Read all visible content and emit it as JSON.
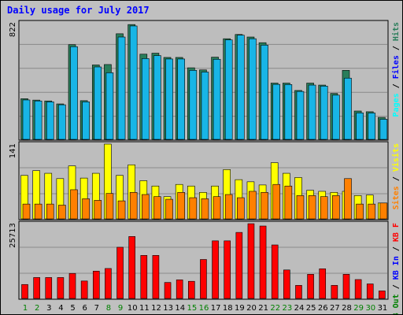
{
  "title": "Daily usage for July 2017",
  "colors": {
    "title": "#0000ff",
    "hits": "#297d5a",
    "files": "#18b5e6",
    "pages": "#00ffff",
    "visits": "#ffff00",
    "sites": "#ff8000",
    "kbin": "#008000",
    "kbout": "#0000ff",
    "kbf": "#ff0000",
    "weekend_day": "#008000",
    "weekday": "#000000"
  },
  "chart_data": [
    {
      "type": "bar",
      "panel": "top",
      "max_label": "822",
      "ylim": [
        0,
        822
      ],
      "categories": [
        "1",
        "2",
        "3",
        "4",
        "5",
        "6",
        "7",
        "8",
        "9",
        "10",
        "11",
        "12",
        "13",
        "14",
        "15",
        "16",
        "17",
        "18",
        "19",
        "20",
        "21",
        "22",
        "23",
        "24",
        "25",
        "26",
        "27",
        "28",
        "29",
        "30",
        "31"
      ],
      "legend": [
        {
          "label": "Hits",
          "color": "#297d5a"
        },
        {
          "label": "Files",
          "color": "#0000ff"
        },
        {
          "label": "Pages",
          "color": "#00ffff"
        }
      ],
      "legend_sep": " / ",
      "series": [
        {
          "name": "Hits",
          "values": [
            287,
            277,
            271,
            250,
            668,
            273,
            525,
            528,
            745,
            810,
            601,
            608,
            578,
            578,
            505,
            490,
            580,
            710,
            740,
            722,
            682,
            397,
            397,
            345,
            397,
            383,
            324,
            487,
            200,
            195,
            155
          ]
        },
        {
          "name": "Files",
          "values": [
            278,
            271,
            265,
            244,
            654,
            265,
            511,
            470,
            722,
            800,
            570,
            591,
            567,
            567,
            487,
            475,
            565,
            702,
            735,
            710,
            665,
            388,
            387,
            338,
            383,
            376,
            312,
            432,
            187,
            186,
            142
          ]
        }
      ]
    },
    {
      "type": "bar",
      "panel": "middle",
      "max_label": "141",
      "ylim": [
        0,
        141
      ],
      "categories": [
        "1",
        "2",
        "3",
        "4",
        "5",
        "6",
        "7",
        "8",
        "9",
        "10",
        "11",
        "12",
        "13",
        "14",
        "15",
        "16",
        "17",
        "18",
        "19",
        "20",
        "21",
        "22",
        "23",
        "24",
        "25",
        "26",
        "27",
        "28",
        "29",
        "30",
        "31"
      ],
      "legend": [
        {
          "label": "Visits",
          "color": "#ffff00"
        },
        {
          "label": "Sites",
          "color": "#ff8000"
        }
      ],
      "legend_sep": " / ",
      "series": [
        {
          "name": "Visits",
          "values": [
            82,
            91,
            86,
            76,
            100,
            77,
            86,
            141,
            82,
            102,
            72,
            62,
            42,
            65,
            62,
            50,
            62,
            93,
            74,
            70,
            64,
            106,
            86,
            78,
            54,
            52,
            50,
            52,
            44,
            45,
            30
          ]
        },
        {
          "name": "Sites",
          "values": [
            28,
            28,
            28,
            26,
            55,
            38,
            35,
            48,
            34,
            50,
            46,
            42,
            37,
            50,
            40,
            38,
            42,
            46,
            40,
            52,
            50,
            65,
            62,
            44,
            44,
            42,
            44,
            76,
            28,
            28,
            30
          ]
        }
      ]
    },
    {
      "type": "bar",
      "panel": "bottom",
      "max_label": "25713",
      "ylim": [
        0,
        25713
      ],
      "categories": [
        "1",
        "2",
        "3",
        "4",
        "5",
        "6",
        "7",
        "8",
        "9",
        "10",
        "11",
        "12",
        "13",
        "14",
        "15",
        "16",
        "17",
        "18",
        "19",
        "20",
        "21",
        "22",
        "23",
        "24",
        "25",
        "26",
        "27",
        "28",
        "29",
        "30",
        "31"
      ],
      "legend": [
        {
          "label": "KB F",
          "color": "#ff0000"
        },
        {
          "label": "KB In",
          "color": "#0000ff"
        },
        {
          "label": "KB Out",
          "color": "#008000"
        }
      ],
      "legend_sep": " / ",
      "series": [
        {
          "name": "KB F",
          "values": [
            4800,
            7200,
            7200,
            7200,
            8600,
            6000,
            9400,
            10300,
            17600,
            21300,
            14800,
            14800,
            5500,
            6400,
            5900,
            13400,
            19800,
            19800,
            22700,
            25700,
            24900,
            18400,
            9800,
            4500,
            8300,
            10200,
            4500,
            8300,
            6500,
            5000,
            2600
          ]
        }
      ]
    }
  ],
  "weekend_days": [
    1,
    2,
    8,
    9,
    15,
    16,
    22,
    23,
    29,
    30
  ]
}
